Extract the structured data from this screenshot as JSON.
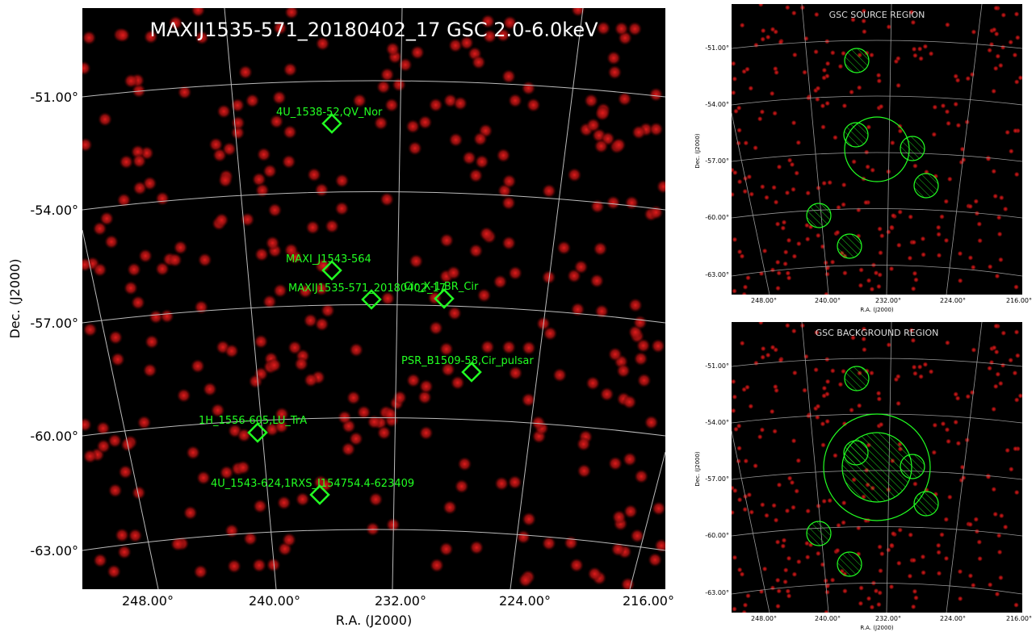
{
  "main": {
    "title": "MAXIJ1535-571_20180402_17 GSC 2.0-6.0keV",
    "xlabel": "R.A. (J2000)",
    "ylabel": "Dec. (J2000)",
    "dec_ticks": [
      "-51.00°",
      "-54.00°",
      "-57.00°",
      "-60.00°",
      "-63.00°"
    ],
    "ra_ticks": [
      "248.00°",
      "240.00°",
      "232.00°",
      "224.00°",
      "216.00°"
    ],
    "sources": [
      {
        "name": "4U_1538-52,QV_Nor"
      },
      {
        "name": "MAXI_J1543-564"
      },
      {
        "name": "MAXIJ1535-571_20180402_17"
      },
      {
        "name": "Cir_X-1,BR_Cir"
      },
      {
        "name": "PSR_B1509-58,Cir_pulsar"
      },
      {
        "name": "1H_1556-605,LU_TrA"
      },
      {
        "name": "4U_1543-624,1RXS_J154754.4-623409"
      }
    ]
  },
  "source_region": {
    "title": "GSC SOURCE REGION",
    "xlabel": "R.A. (J2000)",
    "ylabel": "Dec. (J2000)",
    "dec_ticks": [
      "-51.00°",
      "-54.00°",
      "-57.00°",
      "-60.00°",
      "-63.00°"
    ],
    "ra_ticks": [
      "248.00°",
      "240.00°",
      "232.00°",
      "224.00°",
      "216.00°"
    ]
  },
  "background_region": {
    "title": "GSC BACKGROUND REGION",
    "xlabel": "R.A. (J2000)",
    "ylabel": "Dec. (J2000)",
    "dec_ticks": [
      "-51.00°",
      "-54.00°",
      "-57.00°",
      "-60.00°",
      "-63.00°"
    ],
    "ra_ticks": [
      "248.00°",
      "240.00°",
      "232.00°",
      "224.00°",
      "216.00°"
    ]
  },
  "colors": {
    "background": "#000000",
    "event": "#b31515",
    "source_marker": "#22ff22",
    "grid": "#bbbbbb"
  }
}
